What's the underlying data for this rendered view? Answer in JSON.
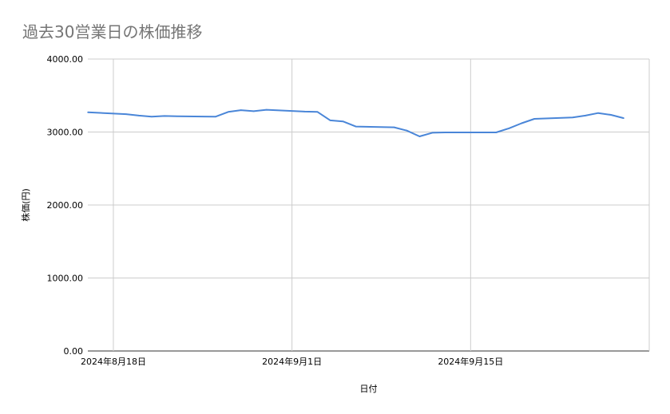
{
  "chart_data": {
    "type": "line",
    "title": "過去30営業日の株価推移",
    "xlabel": "日付",
    "ylabel": "株価(円)",
    "ylim": [
      0,
      4000
    ],
    "y_ticks": [
      "0.00",
      "1000.00",
      "2000.00",
      "3000.00",
      "4000.00"
    ],
    "x_ticks": [
      "2024年8月18日",
      "2024年9月1日",
      "2024年9月15日"
    ],
    "x_range": [
      "2024-08-16",
      "2024-09-29"
    ],
    "grid": true,
    "legend": "none",
    "series": [
      {
        "color": "#4a86d8",
        "x": [
          "2024-08-16",
          "2024-08-19",
          "2024-08-20",
          "2024-08-21",
          "2024-08-22",
          "2024-08-23",
          "2024-08-26",
          "2024-08-27",
          "2024-08-28",
          "2024-08-29",
          "2024-08-30",
          "2024-09-02",
          "2024-09-03",
          "2024-09-04",
          "2024-09-05",
          "2024-09-06",
          "2024-09-09",
          "2024-09-10",
          "2024-09-11",
          "2024-09-12",
          "2024-09-13",
          "2024-09-16",
          "2024-09-17",
          "2024-09-18",
          "2024-09-19",
          "2024-09-20",
          "2024-09-23",
          "2024-09-24",
          "2024-09-25",
          "2024-09-26",
          "2024-09-27"
        ],
        "y": [
          3270,
          3245,
          3225,
          3210,
          3220,
          3215,
          3210,
          3275,
          3300,
          3285,
          3305,
          3280,
          3275,
          3160,
          3145,
          3075,
          3065,
          3020,
          2940,
          2990,
          2995,
          2995,
          2995,
          3050,
          3120,
          3180,
          3200,
          3225,
          3260,
          3235,
          3190
        ]
      }
    ]
  }
}
